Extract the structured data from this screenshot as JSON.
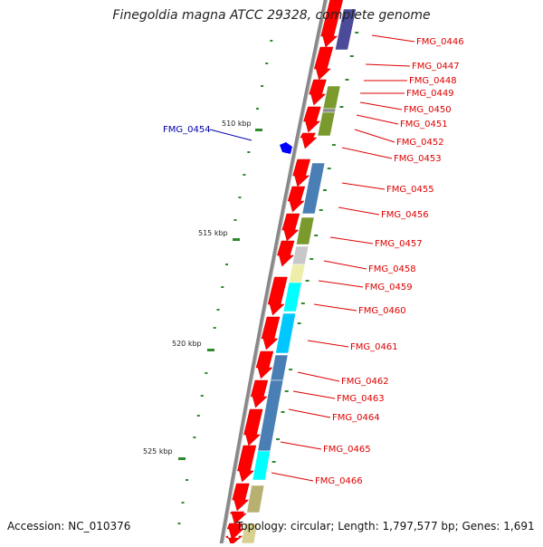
{
  "title": "Finegoldia magna ATCC 29328, complete genome",
  "accession_text": "Accession: NC_010376",
  "topology_text": "Topology: circular; Length: 1,797,577 bp; Genes: 1,691",
  "colors": {
    "backbone": "#888888",
    "gene_red": "#ff0000",
    "highlight_blue": "#0000ff",
    "tick_green": "#2e8b2e",
    "label_red": "#dd0000",
    "label_blue": "#0000aa"
  },
  "scale_labels": [
    {
      "text": "510 kbp"
    },
    {
      "text": "515 kbp"
    },
    {
      "text": "520 kbp"
    },
    {
      "text": "525 kbp"
    }
  ],
  "gene_labels": [
    {
      "id": "FMG_0446"
    },
    {
      "id": "FMG_0447"
    },
    {
      "id": "FMG_0448"
    },
    {
      "id": "FMG_0449"
    },
    {
      "id": "FMG_0450"
    },
    {
      "id": "FMG_0451"
    },
    {
      "id": "FMG_0452"
    },
    {
      "id": "FMG_0453"
    },
    {
      "id": "FMG_0455"
    },
    {
      "id": "FMG_0456"
    },
    {
      "id": "FMG_0457"
    },
    {
      "id": "FMG_0458"
    },
    {
      "id": "FMG_0459"
    },
    {
      "id": "FMG_0460"
    },
    {
      "id": "FMG_0461"
    },
    {
      "id": "FMG_0462"
    },
    {
      "id": "FMG_0463"
    },
    {
      "id": "FMG_0464"
    },
    {
      "id": "FMG_0465"
    },
    {
      "id": "FMG_0466"
    }
  ],
  "highlight_label": {
    "id": "FMG_0454"
  }
}
